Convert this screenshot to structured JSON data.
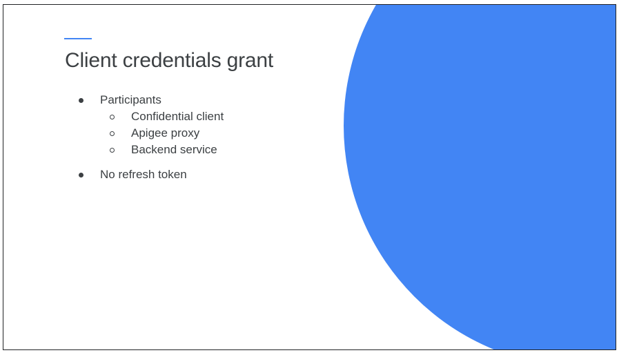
{
  "slide": {
    "title": "Client credentials grant",
    "accent_color": "#4285f4",
    "bullets": [
      {
        "label": "Participants",
        "sub_items": [
          "Confidential client",
          "Apigee proxy",
          "Backend service"
        ]
      },
      {
        "label": "No refresh token"
      }
    ]
  }
}
